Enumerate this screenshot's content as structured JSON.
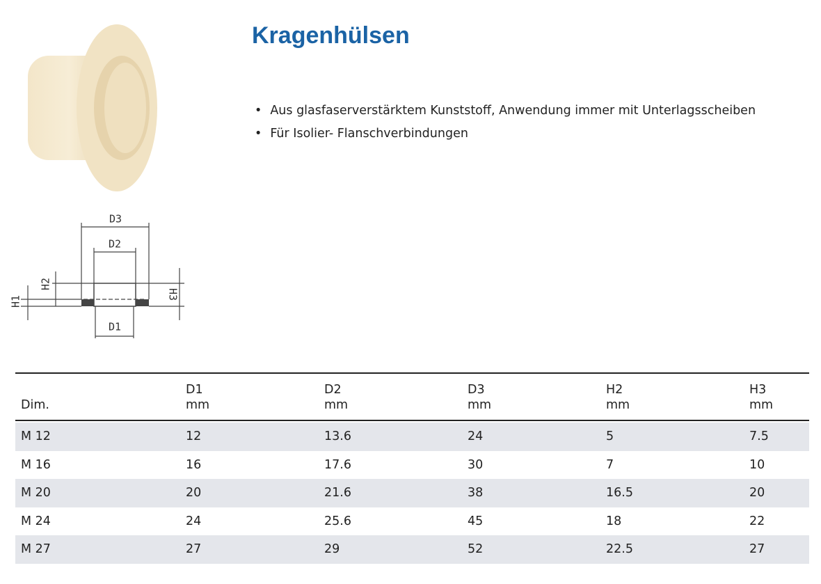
{
  "title": "Kragenhülsen",
  "bullets": [
    "Aus glasfaserverstärktem Kunststoff, Anwendung immer mit Unterlagsscheiben",
    "Für Isolier- Flanschverbindungen"
  ],
  "diagram": {
    "labels": {
      "D3": "D3",
      "D2": "D2",
      "D1": "D1",
      "H1": "H1",
      "H2": "H2",
      "H3": "H3"
    }
  },
  "table": {
    "header": [
      {
        "name": "Dim."
      },
      {
        "name": "D1",
        "unit": "mm"
      },
      {
        "name": "D2",
        "unit": "mm"
      },
      {
        "name": "D3",
        "unit": "mm"
      },
      {
        "name": "H2",
        "unit": "mm"
      },
      {
        "name": "H3",
        "unit": "mm"
      }
    ],
    "rows": [
      [
        "M 12",
        12,
        13.6,
        24,
        5,
        7.5
      ],
      [
        "M 16",
        16,
        17.6,
        30,
        7,
        10
      ],
      [
        "M 20",
        20,
        21.6,
        38,
        16.5,
        20
      ],
      [
        "M 24",
        24,
        25.6,
        45,
        18,
        22
      ],
      [
        "M 27",
        27,
        29,
        52,
        22.5,
        27
      ]
    ]
  }
}
